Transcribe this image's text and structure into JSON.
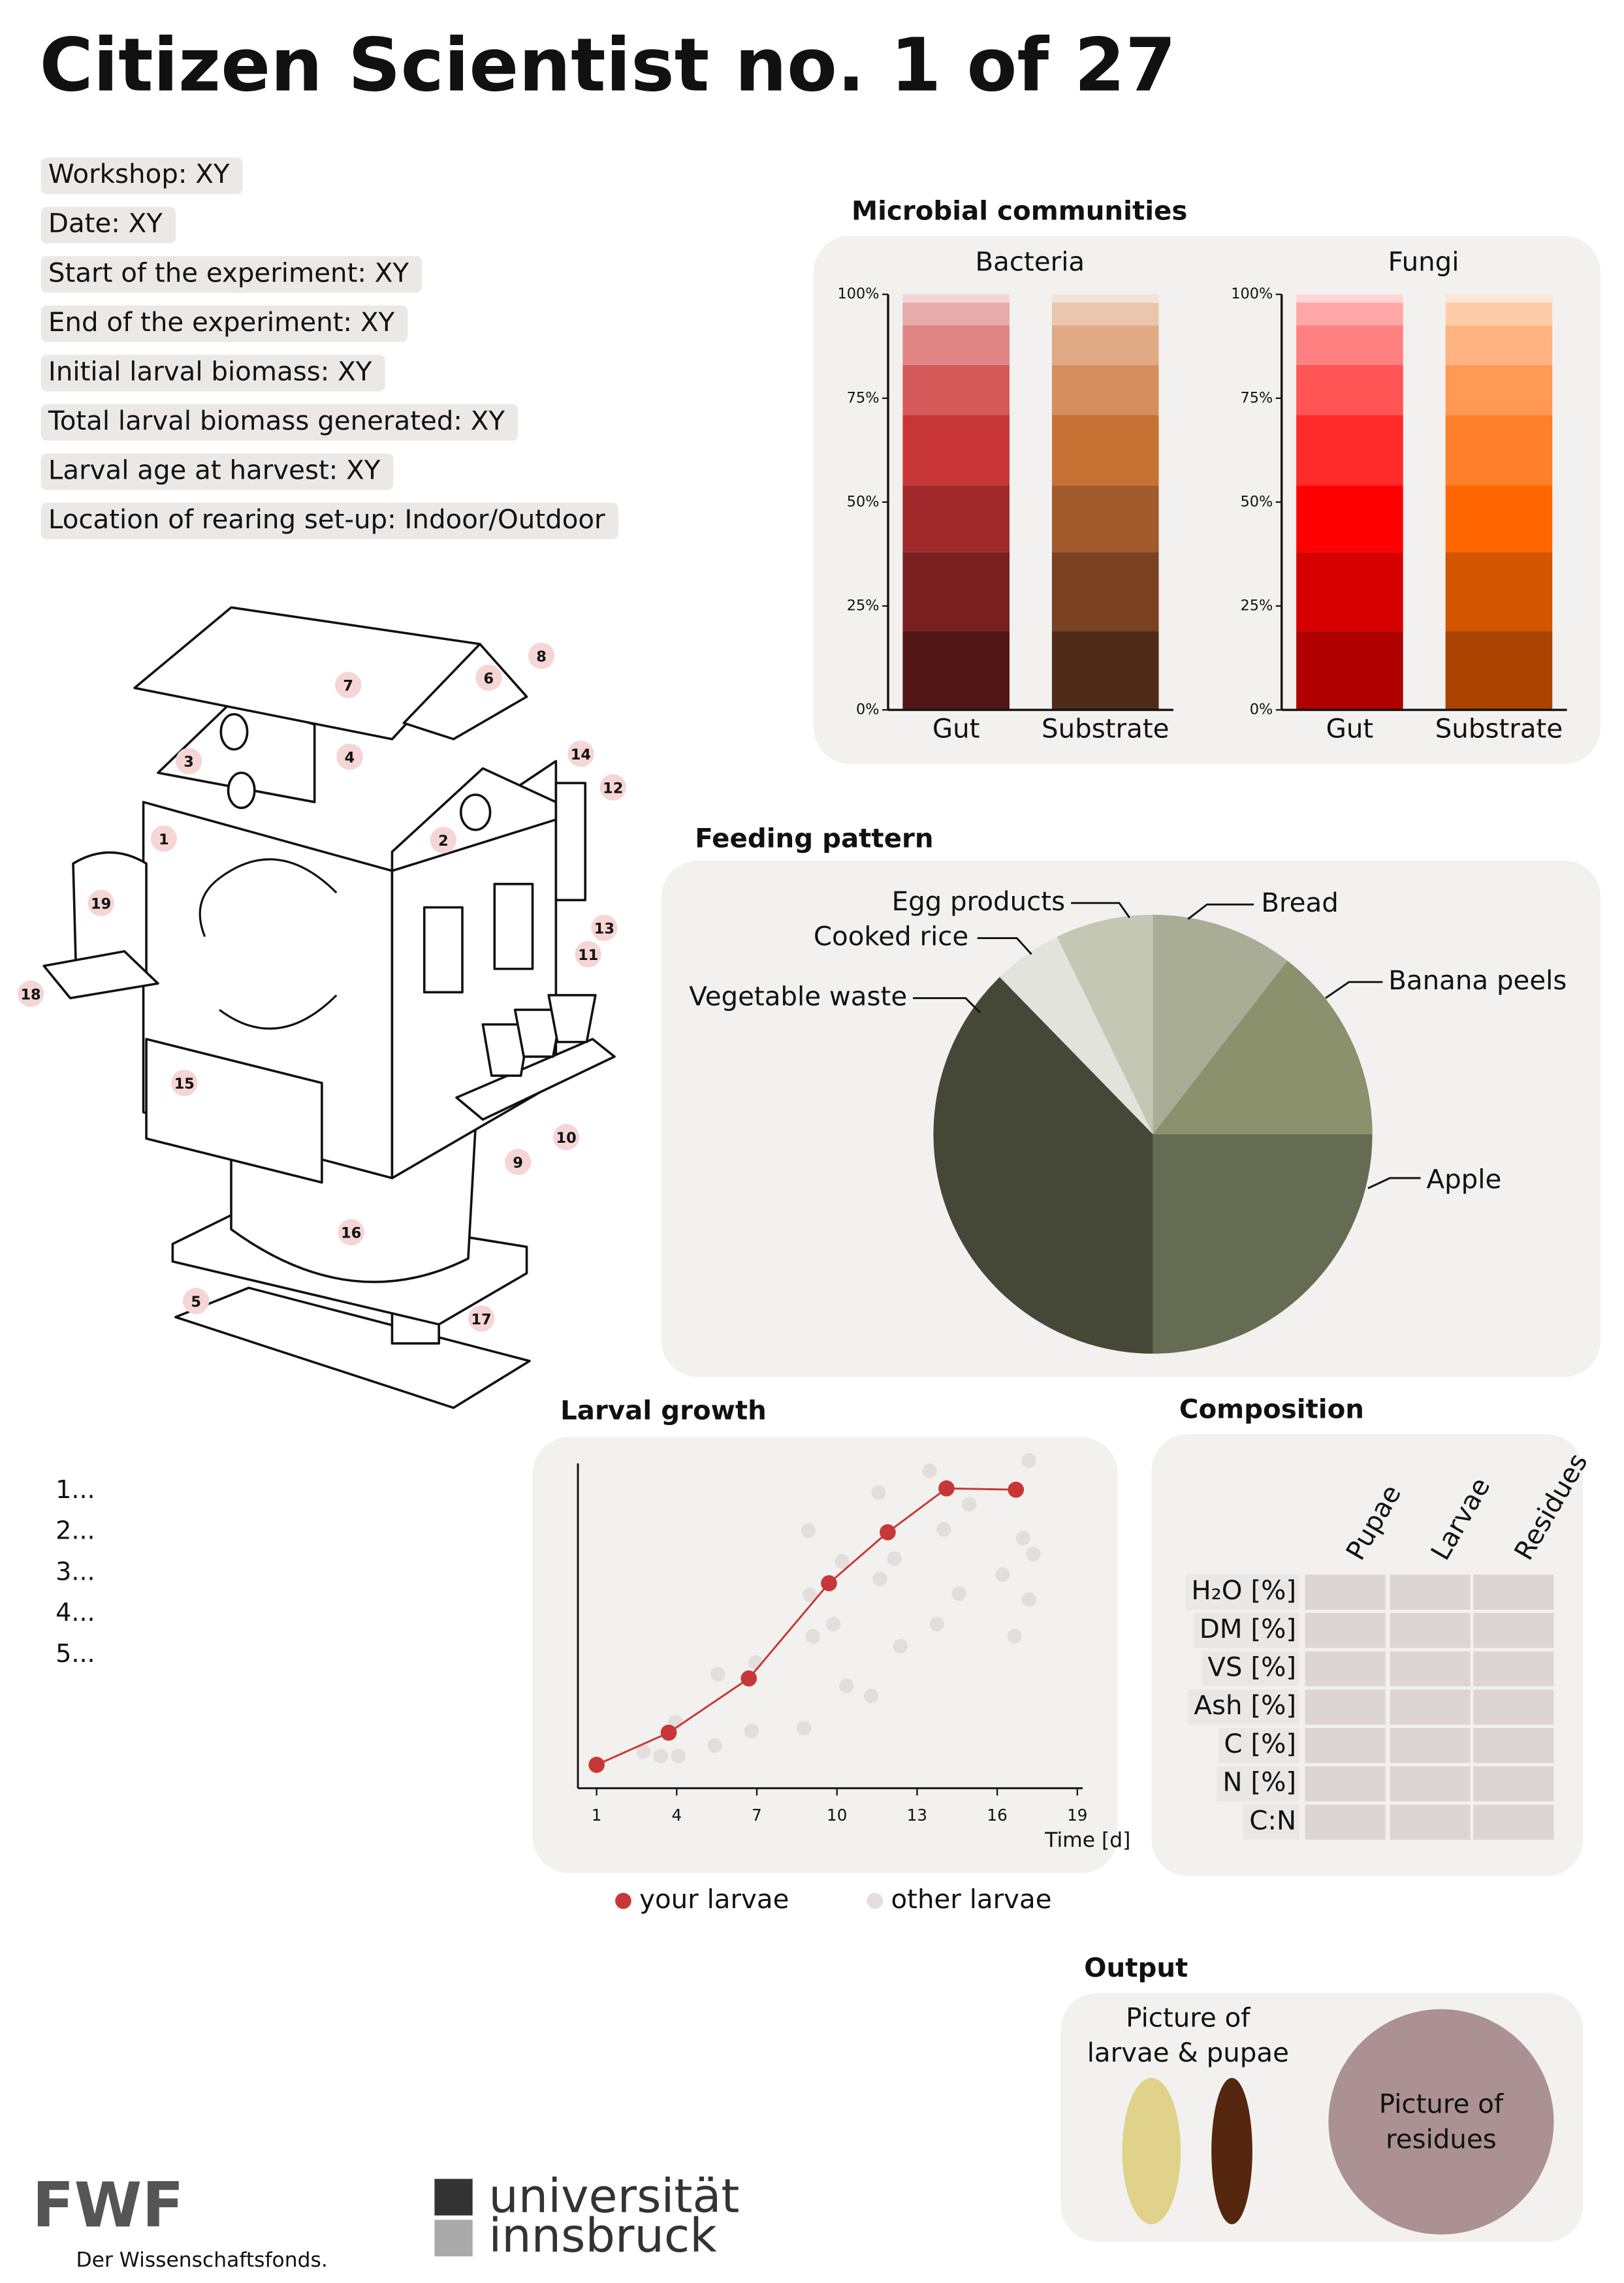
{
  "header": {
    "title": "Citizen Scientist no. 1 of 27"
  },
  "info_fields": [
    "Workshop: XY",
    "Date: XY",
    "Start of the experiment: XY",
    "End of the experiment: XY",
    "Initial larval biomass: XY",
    "Total larval biomass generated: XY",
    "Larval age at harvest: XY",
    "Location of rearing set-up: Indoor/Outdoor"
  ],
  "diagram": {
    "labels": [
      "7",
      "6",
      "8",
      "3",
      "4",
      "14",
      "12",
      "1",
      "2",
      "19",
      "13",
      "11",
      "18",
      "15",
      "10",
      "9",
      "16",
      "5",
      "17"
    ]
  },
  "list": [
    "1...",
    "2...",
    "3...",
    "4...",
    "5..."
  ],
  "sections": {
    "microbial": "Microbial communities",
    "composition": "Composition",
    "output": "Output"
  },
  "chart_data": [
    {
      "type": "stacked_bar",
      "title": "Bacteria",
      "categories": [
        "Gut",
        "Substrate"
      ],
      "series": [
        {
          "values": [
            19,
            19
          ],
          "colors": [
            "#521516",
            "#4f2c1a"
          ]
        },
        {
          "values": [
            19,
            19
          ],
          "colors": [
            "#7a1f1f",
            "#7a4222"
          ]
        },
        {
          "values": [
            16,
            16
          ],
          "colors": [
            "#a0292b",
            "#a05a2c"
          ]
        },
        {
          "values": [
            17,
            17
          ],
          "colors": [
            "#c93638",
            "#c87135"
          ]
        },
        {
          "values": [
            12,
            12
          ],
          "colors": [
            "#d65a5a",
            "#d58f5e"
          ]
        },
        {
          "values": [
            9.5,
            9.5
          ],
          "colors": [
            "#e08484",
            "#e0aa85"
          ]
        },
        {
          "values": [
            5.5,
            5.5
          ],
          "colors": [
            "#e8aaaa",
            "#ebc6ad"
          ]
        },
        {
          "values": [
            2,
            2
          ],
          "colors": [
            "#f2d5d5",
            "#f5e2d6"
          ]
        }
      ],
      "ylim": [
        0,
        100
      ],
      "yticks": [
        {
          "value": 0,
          "label": "0%"
        },
        {
          "value": 25,
          "label": "25%"
        },
        {
          "value": 50,
          "label": "50%"
        },
        {
          "value": 75,
          "label": "75%"
        },
        {
          "value": 100,
          "label": "100%"
        }
      ]
    },
    {
      "type": "stacked_bar",
      "title": "Fungi",
      "categories": [
        "Gut",
        "Substrate"
      ],
      "series": [
        {
          "values": [
            19,
            19
          ],
          "colors": [
            "#b00000",
            "#aa4400"
          ]
        },
        {
          "values": [
            19,
            19
          ],
          "colors": [
            "#d60000",
            "#d45500"
          ]
        },
        {
          "values": [
            16,
            16
          ],
          "colors": [
            "#ff0000",
            "#ff6600"
          ]
        },
        {
          "values": [
            17,
            17
          ],
          "colors": [
            "#ff2a2a",
            "#ff7f2a"
          ]
        },
        {
          "values": [
            12,
            12
          ],
          "colors": [
            "#ff5555",
            "#ff9955"
          ]
        },
        {
          "values": [
            9.5,
            9.5
          ],
          "colors": [
            "#ff8080",
            "#ffb380"
          ]
        },
        {
          "values": [
            5.5,
            5.5
          ],
          "colors": [
            "#ffa6a6",
            "#ffccaa"
          ]
        },
        {
          "values": [
            2,
            2
          ],
          "colors": [
            "#ffd5d5",
            "#ffe6d5"
          ]
        }
      ],
      "ylim": [
        0,
        100
      ],
      "yticks": [
        {
          "value": 0,
          "label": "0%"
        },
        {
          "value": 25,
          "label": "25%"
        },
        {
          "value": 50,
          "label": "50%"
        },
        {
          "value": 75,
          "label": "75%"
        },
        {
          "value": 100,
          "label": "100%"
        }
      ]
    },
    {
      "type": "pie",
      "title": "Feeding pattern",
      "categories": [
        "Bread",
        "Banana peels",
        "Apple",
        "Vegetable waste",
        "Cooked rice",
        "Egg products"
      ],
      "values": [
        10.5,
        14.5,
        25,
        37.7,
        5.1,
        7.2
      ],
      "colors": [
        "#a9ad95",
        "#8b906d",
        "#666b53",
        "#464837",
        "#e2e3db",
        "#c4c7b4"
      ]
    },
    {
      "type": "line",
      "title": "Larval growth",
      "xlabel": "Time [d]",
      "xlim": [
        0.3,
        19.2
      ],
      "ylim": [
        0,
        100
      ],
      "xticks": [
        1,
        4,
        7,
        10,
        13,
        16,
        19
      ],
      "series": [
        {
          "name": "your larvae",
          "type": "line",
          "color": "#c83737",
          "x": [
            1,
            3.7,
            6.7,
            9.7,
            11.9,
            14.1,
            16.7
          ],
          "values": [
            7.2,
            17.1,
            33.8,
            63.1,
            78.8,
            92.3,
            91.9
          ]
        },
        {
          "name": "other larvae",
          "type": "scatter",
          "color": "#e3dedb",
          "x": [
            2.75,
            3.4,
            3.95,
            4.06,
            5.43,
            5.54,
            6.8,
            6.96,
            8.77,
            8.93,
            8.99,
            9.1,
            9.86,
            10.19,
            10.35,
            11.28,
            11.56,
            11.6,
            12.15,
            12.38,
            13.47,
            13.74,
            14.0,
            14.57,
            14.95,
            16.2,
            16.65,
            16.97,
            17.19,
            17.19,
            17.35
          ],
          "values": [
            11.3,
            9.9,
            20.3,
            9.9,
            13.1,
            35.1,
            17.6,
            38.7,
            18.5,
            79.3,
            59.5,
            46.8,
            50.5,
            69.8,
            31.5,
            28.4,
            91,
            64.4,
            70.7,
            43.7,
            97.7,
            50.5,
            79.7,
            59.9,
            87.4,
            65.8,
            46.8,
            77,
            100.9,
            58.1,
            72.1
          ]
        }
      ]
    }
  ],
  "composition": {
    "columns": [
      "Pupae",
      "Larvae",
      "Residues"
    ],
    "rows": [
      "H₂O [%]",
      "DM [%]",
      "VS [%]",
      "Ash [%]",
      "C [%]",
      "N [%]",
      "C:N"
    ]
  },
  "output": {
    "larvae_caption": [
      "Picture of",
      "larvae & pupae"
    ],
    "residues_caption": [
      "Picture of",
      "residues"
    ]
  },
  "logos": {
    "fwf": "FWF",
    "fwf_sub": "Der Wissenschaftsfonds.",
    "uni_line1": "universität",
    "uni_line2": "innsbruck"
  }
}
